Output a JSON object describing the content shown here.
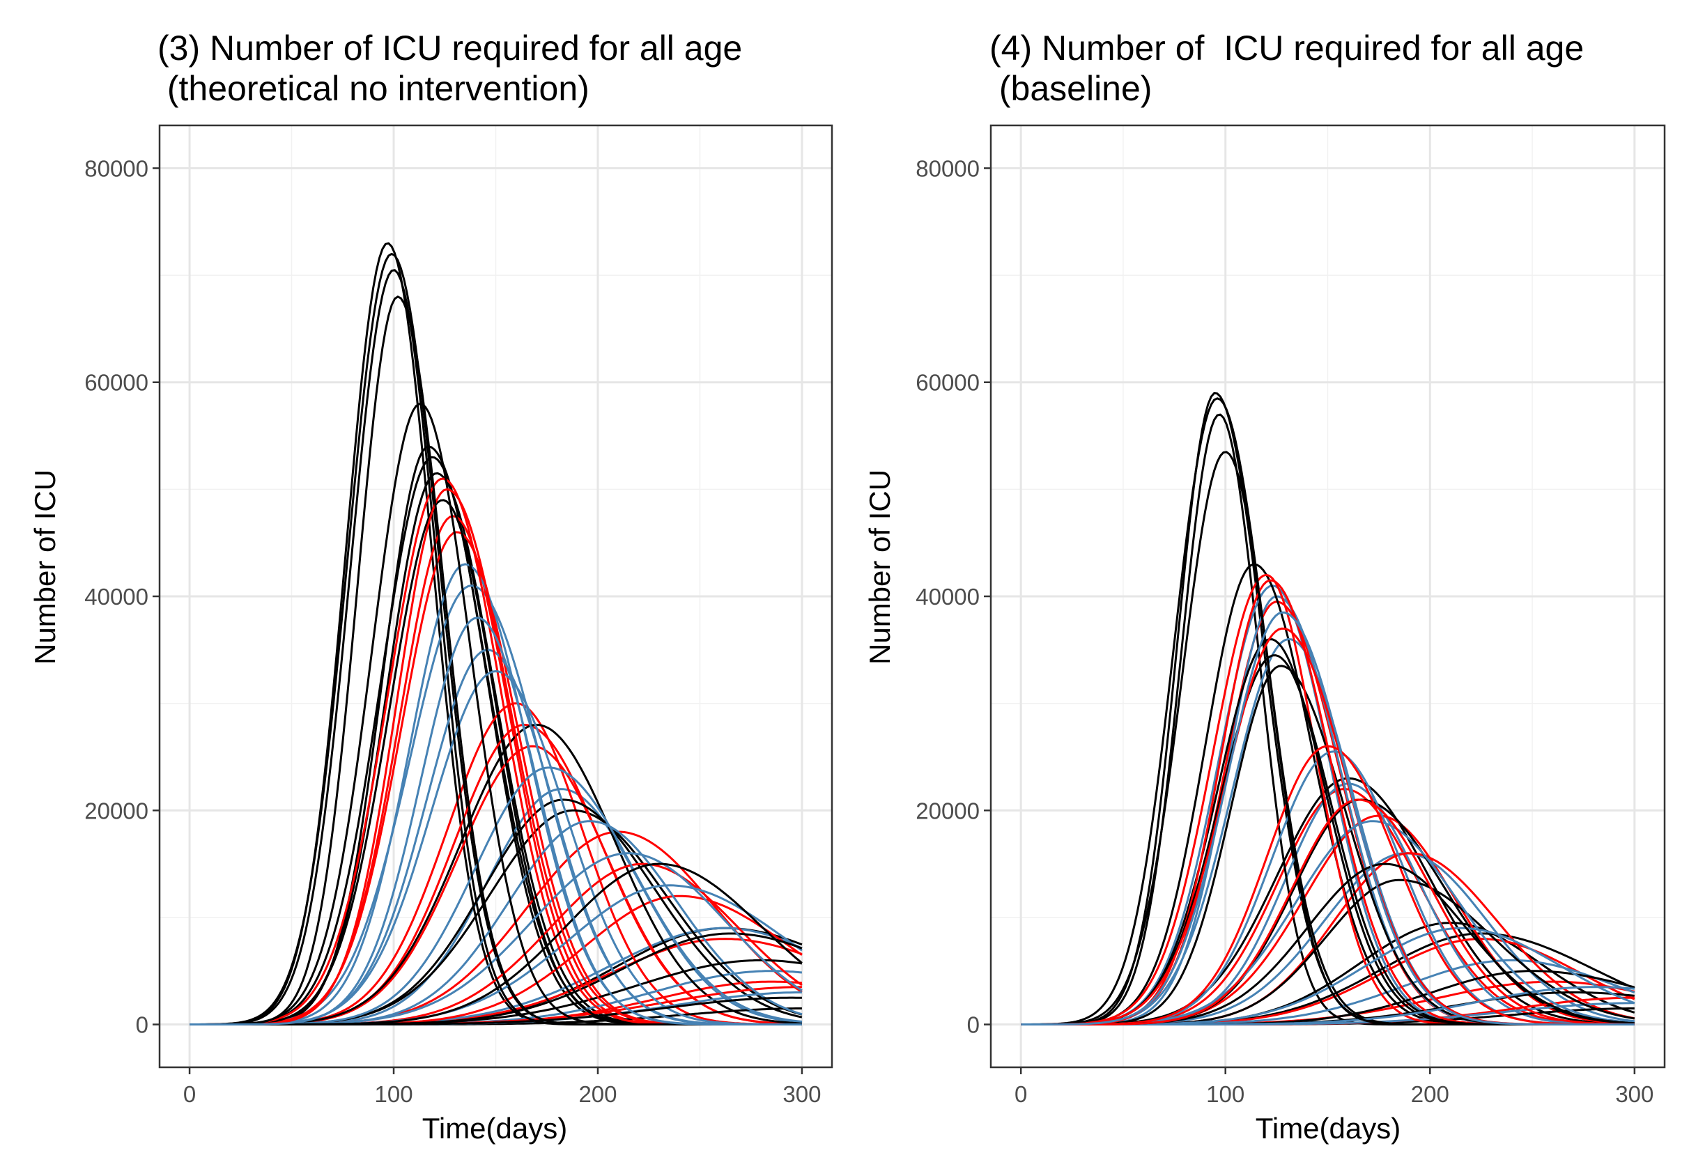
{
  "chart_data": [
    {
      "type": "line",
      "title": "(3) Number of ICU required for all age\n (theoretical no intervention)",
      "xlabel": "Time(days)",
      "ylabel": "Number of ICU",
      "xlim": [
        0,
        300
      ],
      "ylim": [
        0,
        80000
      ],
      "x_ticks": [
        0,
        100,
        200,
        300
      ],
      "y_ticks": [
        0,
        20000,
        40000,
        60000,
        80000
      ],
      "x_tick_labels": [
        "0",
        "100",
        "200",
        "300"
      ],
      "y_tick_labels": [
        "0",
        "20000",
        "40000",
        "60000",
        "80000"
      ],
      "grid": true,
      "legend": "none",
      "series_colors": {
        "black": "#000000",
        "red": "#ff0000",
        "blue": "#4682b4"
      },
      "curve_groups": [
        {
          "color": "black",
          "curves": [
            [
              97,
              73000
            ],
            [
              99,
              72000
            ],
            [
              100,
              70500
            ],
            [
              102,
              68000
            ],
            [
              113,
              58000
            ],
            [
              117,
              54000
            ],
            [
              119,
              53000
            ],
            [
              121,
              51500
            ],
            [
              124,
              49000
            ],
            [
              170,
              28000
            ],
            [
              183,
              21000
            ],
            [
              188,
              20000
            ],
            [
              230,
              15000
            ],
            [
              262,
              9000
            ],
            [
              265,
              8500
            ],
            [
              280,
              6000
            ],
            [
              295,
              2500
            ],
            [
              300,
              1500
            ]
          ]
        },
        {
          "color": "red",
          "curves": [
            [
              124,
              51000
            ],
            [
              126,
              50000
            ],
            [
              129,
              47500
            ],
            [
              131,
              46000
            ],
            [
              160,
              30000
            ],
            [
              164,
              28000
            ],
            [
              168,
              26000
            ],
            [
              210,
              18000
            ],
            [
              222,
              15000
            ],
            [
              240,
              12000
            ],
            [
              262,
              8000
            ],
            [
              285,
              4000
            ],
            [
              300,
              3500
            ]
          ]
        },
        {
          "color": "blue",
          "curves": [
            [
              135,
              43000
            ],
            [
              138,
              41000
            ],
            [
              141,
              38000
            ],
            [
              146,
              35000
            ],
            [
              150,
              33000
            ],
            [
              176,
              24000
            ],
            [
              182,
              22000
            ],
            [
              196,
              19000
            ],
            [
              215,
              16000
            ],
            [
              235,
              13000
            ],
            [
              262,
              9000
            ],
            [
              285,
              5000
            ],
            [
              300,
              3000
            ]
          ]
        }
      ]
    },
    {
      "type": "line",
      "title": "(4) Number of  ICU required for all age\n (baseline)",
      "xlabel": "Time(days)",
      "ylabel": "Number of ICU",
      "xlim": [
        0,
        300
      ],
      "ylim": [
        0,
        80000
      ],
      "x_ticks": [
        0,
        100,
        200,
        300
      ],
      "y_ticks": [
        0,
        20000,
        40000,
        60000,
        80000
      ],
      "x_tick_labels": [
        "0",
        "100",
        "200",
        "300"
      ],
      "y_tick_labels": [
        "0",
        "20000",
        "40000",
        "60000",
        "80000"
      ],
      "grid": true,
      "legend": "none",
      "series_colors": {
        "black": "#000000",
        "red": "#ff0000",
        "blue": "#4682b4"
      },
      "curve_groups": [
        {
          "color": "black",
          "curves": [
            [
              95,
              59000
            ],
            [
              96,
              58500
            ],
            [
              97,
              57000
            ],
            [
              100,
              53500
            ],
            [
              114,
              43000
            ],
            [
              122,
              36000
            ],
            [
              124,
              34500
            ],
            [
              127,
              33500
            ],
            [
              160,
              23000
            ],
            [
              166,
              21000
            ],
            [
              178,
              15000
            ],
            [
              185,
              13500
            ],
            [
              210,
              9500
            ],
            [
              225,
              8500
            ],
            [
              250,
              5000
            ],
            [
              270,
              3000
            ],
            [
              300,
              1500
            ]
          ]
        },
        {
          "color": "red",
          "curves": [
            [
              120,
              42000
            ],
            [
              122,
              41500
            ],
            [
              125,
              39500
            ],
            [
              128,
              37000
            ],
            [
              150,
              26000
            ],
            [
              158,
              22000
            ],
            [
              165,
              21000
            ],
            [
              175,
              19500
            ],
            [
              190,
              16000
            ],
            [
              225,
              8000
            ],
            [
              260,
              4000
            ],
            [
              300,
              2500
            ]
          ]
        },
        {
          "color": "blue",
          "curves": [
            [
              123,
              41000
            ],
            [
              125,
              40000
            ],
            [
              128,
              38500
            ],
            [
              131,
              36000
            ],
            [
              153,
              25500
            ],
            [
              160,
              22500
            ],
            [
              172,
              19000
            ],
            [
              188,
              16000
            ],
            [
              215,
              9000
            ],
            [
              240,
              6000
            ],
            [
              280,
              3500
            ],
            [
              300,
              2000
            ]
          ]
        }
      ]
    }
  ]
}
